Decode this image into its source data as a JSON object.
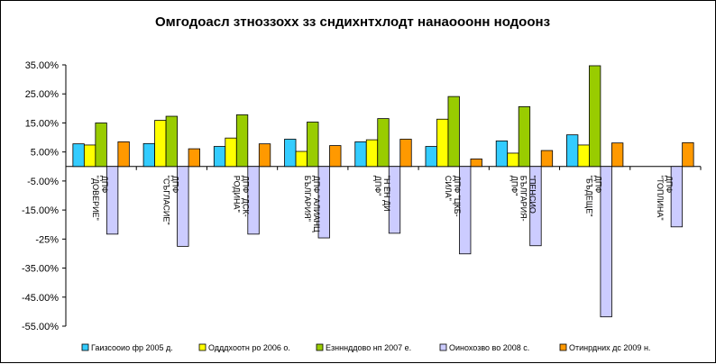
{
  "chart_data": {
    "type": "bar",
    "title": "Омгодоасл зтноззохх зз сндихнтхлодт нанаооонн нодоонз",
    "xlabel": "",
    "ylabel": "",
    "ylim": [
      -55,
      35
    ],
    "y_ticks": [
      "35.00%",
      "25.00%",
      "15.00%",
      "5.00%",
      "-5.00%",
      "-15.00%",
      "-25%",
      "-35.00%",
      "-45.00%",
      "-55.00%"
    ],
    "categories": [
      [
        "ДПФ",
        "\"ДОВЕРИЕ\""
      ],
      [
        "ДПФ",
        "\"СЪГЛАСИЕ\""
      ],
      [
        "ДПФ \"ДСК-",
        "РОДИНА\""
      ],
      [
        "ДПФ \"АЛИАНЦ",
        "БЪЛГАРИЯ\""
      ],
      [
        "\"Н ЕН ДИ",
        "ДПФ\""
      ],
      [
        "ДПФ \"ЦКБ-",
        "СИЛА\""
      ],
      [
        "\"ПЕНСИО",
        "БЪЛГАРИЯ-",
        "ДПФ\""
      ],
      [
        "ДПФ",
        "\"БЪДЕЩЕ\""
      ],
      [
        "ДПФ",
        "\"ТОПЛИНА\""
      ]
    ],
    "series": [
      {
        "name": "Гаизсооио фр 2005 д.",
        "color": "#33CCFF",
        "values": [
          7.8,
          7.9,
          6.9,
          9.4,
          8.5,
          6.9,
          8.8,
          10.9,
          null
        ]
      },
      {
        "name": "Одддхоотн ро 2006 о.",
        "color": "#FFFF00",
        "values": [
          7.4,
          15.9,
          9.8,
          5.2,
          9.2,
          16.3,
          4.6,
          7.4,
          null
        ]
      },
      {
        "name": "Езнннддово нп 2007 е.",
        "color": "#99CC00",
        "values": [
          15.0,
          17.3,
          17.8,
          15.3,
          16.5,
          24.1,
          20.6,
          34.7,
          null
        ]
      },
      {
        "name": "Оинохозво во 2008 с.",
        "color": "#CCCCFF",
        "values": [
          -23.3,
          -27.5,
          -23.3,
          -24.6,
          -23.0,
          -30.1,
          -27.3,
          -51.8,
          -20.8
        ]
      },
      {
        "name": "Отинрдних дс 2009 н.",
        "color": "#FF9900",
        "values": [
          8.5,
          6.1,
          7.8,
          7.2,
          9.4,
          2.6,
          5.5,
          8.1,
          8.2
        ]
      }
    ],
    "grid": false,
    "legend_position": "bottom"
  }
}
